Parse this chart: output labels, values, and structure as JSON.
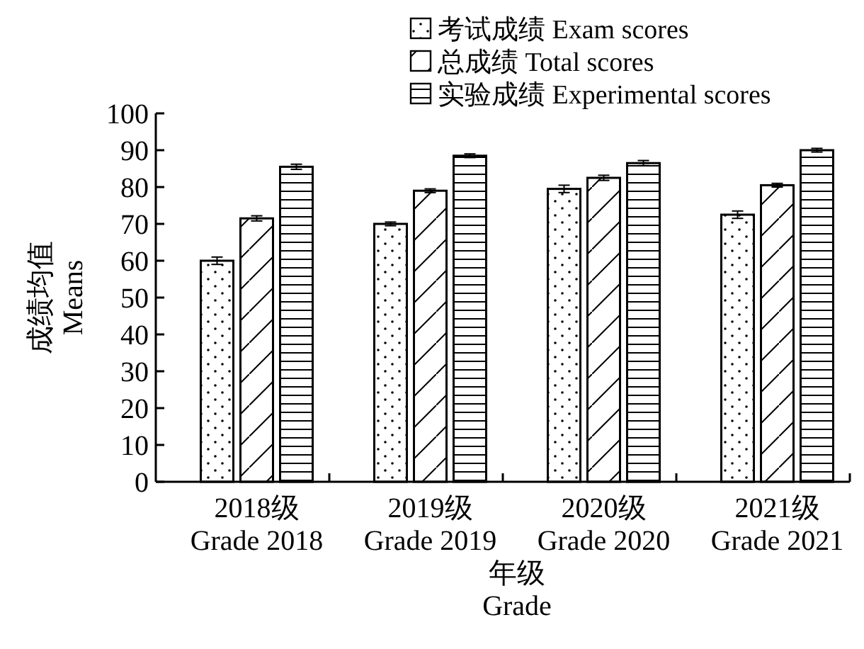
{
  "chart_data": {
    "type": "bar",
    "xlabel": "年级\nGrade",
    "ylabel": "成绩均值\nMeans",
    "categories": [
      "2018级\nGrade 2018",
      "2019级\nGrade 2019",
      "2020级\nGrade 2020",
      "2021级\nGrade 2021"
    ],
    "series": [
      {
        "name": "考试成绩 Exam scores",
        "color": "#000000",
        "values": [
          60,
          70,
          79.5,
          72.5
        ],
        "errors": [
          1,
          0.5,
          1,
          1
        ]
      },
      {
        "name": "总成绩 Total scores",
        "color": "#000000",
        "values": [
          71.5,
          79,
          82.5,
          80.5
        ],
        "errors": [
          0.7,
          0.5,
          0.7,
          0.5
        ]
      },
      {
        "name": "实验成绩 Experimental scores",
        "color": "#000000",
        "values": [
          85.5,
          88.5,
          86.5,
          90
        ],
        "errors": [
          0.7,
          0.5,
          0.7,
          0.5
        ]
      }
    ],
    "ylim": [
      0,
      100
    ],
    "yticks": [
      0,
      10,
      20,
      30,
      40,
      50,
      60,
      70,
      80,
      90,
      100
    ],
    "grid": false,
    "legend": "top right"
  }
}
